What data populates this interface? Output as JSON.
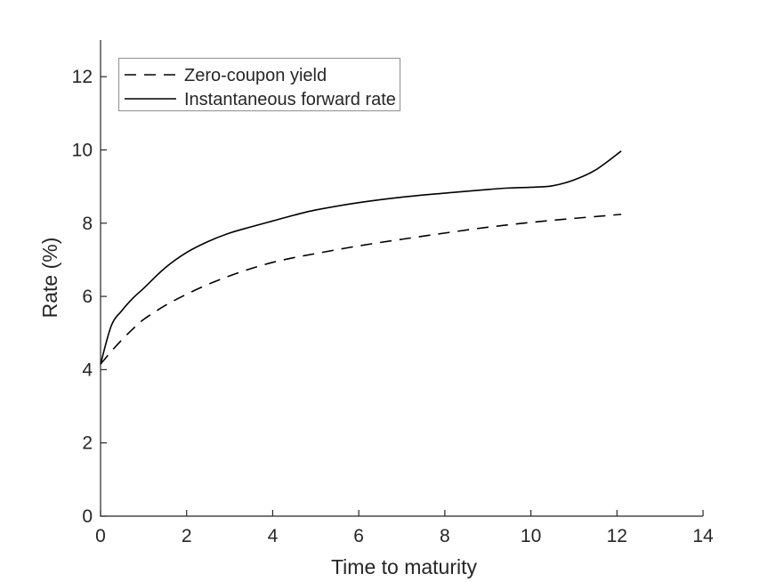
{
  "figure": {
    "background": "#ffffff",
    "axis_color": "#262626",
    "line_color": "#000000",
    "legend_border_color": "#999999"
  },
  "chart_data": {
    "type": "line",
    "title": "",
    "xlabel": "Time to maturity",
    "ylabel": "Rate (%)",
    "xlim": [
      0,
      14
    ],
    "ylim": [
      0,
      13
    ],
    "xticks": [
      0,
      2,
      4,
      6,
      8,
      10,
      12,
      14
    ],
    "yticks": [
      0,
      2,
      4,
      6,
      8,
      10,
      12
    ],
    "grid": false,
    "legend_position": "top-left-inside",
    "series": [
      {
        "name": "Zero-coupon yield",
        "style": "dashed",
        "color": "#000000",
        "x": [
          0,
          0.25,
          0.5,
          0.75,
          1,
          1.5,
          2,
          2.5,
          3,
          3.5,
          4,
          4.5,
          5,
          6,
          7,
          8,
          9,
          10,
          11,
          12.1
        ],
        "y": [
          4.15,
          4.5,
          4.82,
          5.11,
          5.37,
          5.75,
          6.06,
          6.33,
          6.56,
          6.76,
          6.93,
          7.06,
          7.17,
          7.38,
          7.56,
          7.73,
          7.89,
          8.02,
          8.13,
          8.24
        ]
      },
      {
        "name": "Instantaneous forward rate",
        "style": "solid",
        "color": "#000000",
        "x": [
          0,
          0.25,
          0.5,
          0.75,
          1,
          1.5,
          2,
          2.5,
          3,
          3.5,
          4,
          4.5,
          5,
          6,
          7,
          8,
          9,
          9.5,
          10,
          10.5,
          11,
          11.5,
          12.1
        ],
        "y": [
          4.15,
          5.2,
          5.62,
          5.95,
          6.22,
          6.78,
          7.2,
          7.5,
          7.73,
          7.9,
          8.06,
          8.22,
          8.36,
          8.56,
          8.71,
          8.82,
          8.92,
          8.96,
          8.98,
          9.02,
          9.18,
          9.45,
          9.97
        ]
      }
    ]
  }
}
